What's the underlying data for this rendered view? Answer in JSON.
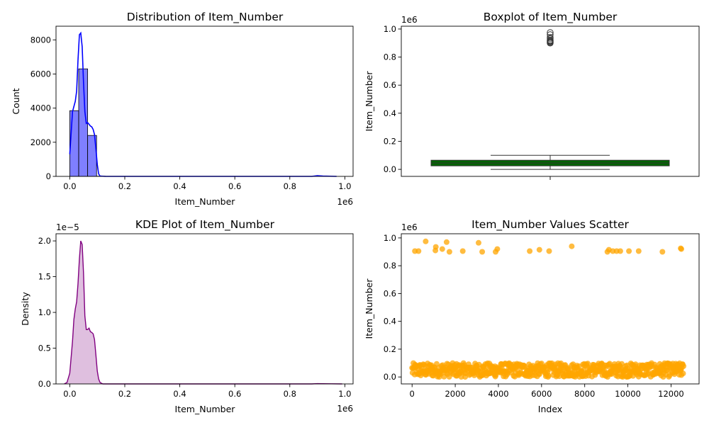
{
  "colors": {
    "hist": "#0000ff",
    "box": "#006400",
    "kde": "#800080",
    "scatter": "#ffa500"
  },
  "chart_data": [
    {
      "type": "bar",
      "subtype": "histogram-with-kde",
      "title": "Distribution of Item_Number",
      "xlabel": "Item_Number",
      "ylabel": "Count",
      "x_offset_label": "1e6",
      "xlim": [
        -0.05,
        1.03
      ],
      "ylim": [
        0,
        8800
      ],
      "x_ticks": [
        0.0,
        0.2,
        0.4,
        0.6,
        0.8,
        1.0
      ],
      "x_tick_labels": [
        "0.0",
        "0.2",
        "0.4",
        "0.6",
        "0.8",
        "1.0"
      ],
      "y_ticks": [
        0,
        2000,
        4000,
        6000,
        8000
      ],
      "y_tick_labels": [
        "0",
        "2000",
        "4000",
        "6000",
        "8000"
      ],
      "bins": [
        {
          "x0": 0.0,
          "x1": 0.0325,
          "count": 3850
        },
        {
          "x0": 0.0325,
          "x1": 0.065,
          "count": 6300
        },
        {
          "x0": 0.065,
          "x1": 0.0975,
          "count": 2400
        },
        {
          "x0": 0.0975,
          "x1": 0.13,
          "count": 10
        }
      ],
      "kde_curve": {
        "x": [
          0.0,
          0.01,
          0.02,
          0.025,
          0.03,
          0.035,
          0.04,
          0.045,
          0.05,
          0.055,
          0.06,
          0.065,
          0.07,
          0.075,
          0.08,
          0.085,
          0.09,
          0.095,
          0.1,
          0.105,
          0.11,
          0.13,
          0.5,
          0.88,
          0.9,
          0.92,
          0.97
        ],
        "y": [
          1300,
          3800,
          4400,
          5000,
          6800,
          8300,
          8400,
          7600,
          5500,
          3800,
          3100,
          3150,
          3050,
          2950,
          2900,
          2750,
          2450,
          1600,
          700,
          150,
          20,
          0,
          0,
          0,
          40,
          20,
          0
        ]
      },
      "grid": false
    },
    {
      "type": "box",
      "title": "Boxplot of Item_Number",
      "ylabel": "Item_Number",
      "y_offset_label": "1e6",
      "ylim": [
        -0.05,
        1.02
      ],
      "y_ticks": [
        0.0,
        0.2,
        0.4,
        0.6,
        0.8,
        1.0
      ],
      "y_tick_labels": [
        "0.0",
        "0.2",
        "0.4",
        "0.6",
        "0.8",
        "1.0"
      ],
      "box": {
        "whisker_low": 0.0,
        "q1": 0.025,
        "median": 0.045,
        "q3": 0.065,
        "whisker_high": 0.1
      },
      "outliers": [
        0.9,
        0.905,
        0.91,
        0.915,
        0.92,
        0.93,
        0.94,
        0.96,
        0.975
      ],
      "grid": false
    },
    {
      "type": "area",
      "subtype": "kde",
      "title": "KDE Plot of Item_Number",
      "xlabel": "Item_Number",
      "ylabel": "Density",
      "x_offset_label": "1e6",
      "y_offset_label": "1e−5",
      "xlim": [
        -0.05,
        1.03
      ],
      "ylim": [
        0,
        2.1
      ],
      "x_ticks": [
        0.0,
        0.2,
        0.4,
        0.6,
        0.8,
        1.0
      ],
      "x_tick_labels": [
        "0.0",
        "0.2",
        "0.4",
        "0.6",
        "0.8",
        "1.0"
      ],
      "y_ticks": [
        0.0,
        0.5,
        1.0,
        1.5,
        2.0
      ],
      "y_tick_labels": [
        "0.0",
        "0.5",
        "1.0",
        "1.5",
        "2.0"
      ],
      "curve": {
        "x": [
          -0.02,
          -0.01,
          0.0,
          0.01,
          0.015,
          0.02,
          0.025,
          0.03,
          0.035,
          0.04,
          0.045,
          0.05,
          0.055,
          0.06,
          0.065,
          0.07,
          0.075,
          0.08,
          0.085,
          0.09,
          0.095,
          0.1,
          0.105,
          0.11,
          0.12,
          0.5,
          0.88,
          0.9,
          0.92,
          0.95,
          0.99
        ],
        "y": [
          0.0,
          0.02,
          0.15,
          0.6,
          0.9,
          1.05,
          1.15,
          1.4,
          1.75,
          2.0,
          1.95,
          1.55,
          0.95,
          0.76,
          0.76,
          0.78,
          0.73,
          0.72,
          0.7,
          0.62,
          0.4,
          0.18,
          0.07,
          0.02,
          0.0,
          0.0,
          0.0,
          0.004,
          0.003,
          0.002,
          0.0
        ]
      },
      "grid": false
    },
    {
      "type": "scatter",
      "title": "Item_Number Values Scatter",
      "xlabel": "Index",
      "ylabel": "Item_Number",
      "y_offset_label": "1e6",
      "xlim": [
        -500,
        13300
      ],
      "ylim": [
        -0.05,
        1.03
      ],
      "x_ticks": [
        0,
        2000,
        4000,
        6000,
        8000,
        10000,
        12000
      ],
      "x_tick_labels": [
        "0",
        "2000",
        "4000",
        "6000",
        "8000",
        "10000",
        "12000"
      ],
      "y_ticks": [
        0.0,
        0.2,
        0.4,
        0.6,
        0.8,
        1.0
      ],
      "y_tick_labels": [
        "0.0",
        "0.2",
        "0.4",
        "0.6",
        "0.8",
        "1.0"
      ],
      "n_points": 12600,
      "bulk_range": [
        0.0,
        0.1
      ],
      "outliers": {
        "x": [
          130,
          300,
          630,
          1080,
          1100,
          1400,
          1600,
          1730,
          2350,
          3080,
          3250,
          3870,
          3950,
          5450,
          5900,
          6350,
          7400,
          9050,
          9120,
          9300,
          9480,
          9650,
          10050,
          10500,
          11600,
          12450,
          12480
        ],
        "y": [
          0.905,
          0.905,
          0.975,
          0.91,
          0.935,
          0.92,
          0.97,
          0.9,
          0.905,
          0.965,
          0.9,
          0.9,
          0.92,
          0.905,
          0.915,
          0.905,
          0.94,
          0.9,
          0.915,
          0.905,
          0.905,
          0.905,
          0.905,
          0.905,
          0.9,
          0.925,
          0.92
        ]
      },
      "grid": false
    }
  ]
}
